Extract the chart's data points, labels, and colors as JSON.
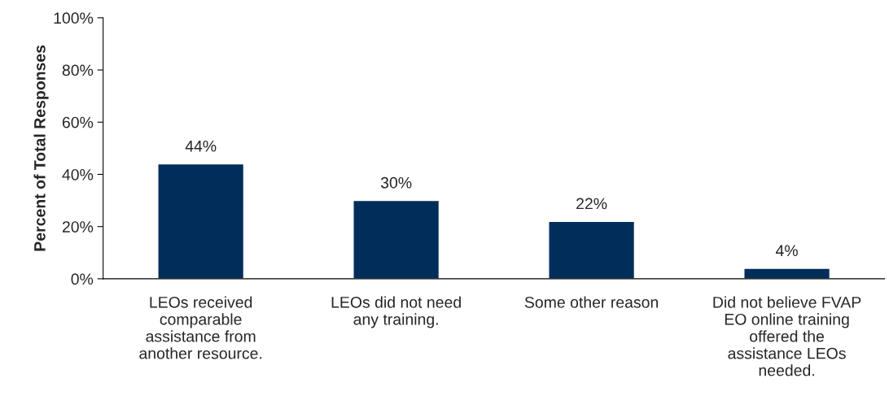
{
  "chart_data": {
    "type": "bar",
    "ylabel": "Percent of Total Responses",
    "categories": [
      "LEOs received\ncomparable\nassistance from\nanother resource.",
      "LEOs did not need\nany training.",
      "Some other reason",
      "Did not believe FVAP\nEO online training\noffered the\nassistance LEOs\nneeded."
    ],
    "values": [
      44,
      30,
      22,
      4
    ],
    "value_labels": [
      "44%",
      "30%",
      "22%",
      "4%"
    ],
    "color": "#002d5a",
    "ylim": [
      0,
      100
    ],
    "yticks": [
      {
        "value": 0,
        "label": "0%"
      },
      {
        "value": 20,
        "label": "20%"
      },
      {
        "value": 40,
        "label": "40%"
      },
      {
        "value": 60,
        "label": "60%"
      },
      {
        "value": 80,
        "label": "80%"
      },
      {
        "value": 100,
        "label": "100%"
      }
    ],
    "grid": false,
    "legend": false
  }
}
